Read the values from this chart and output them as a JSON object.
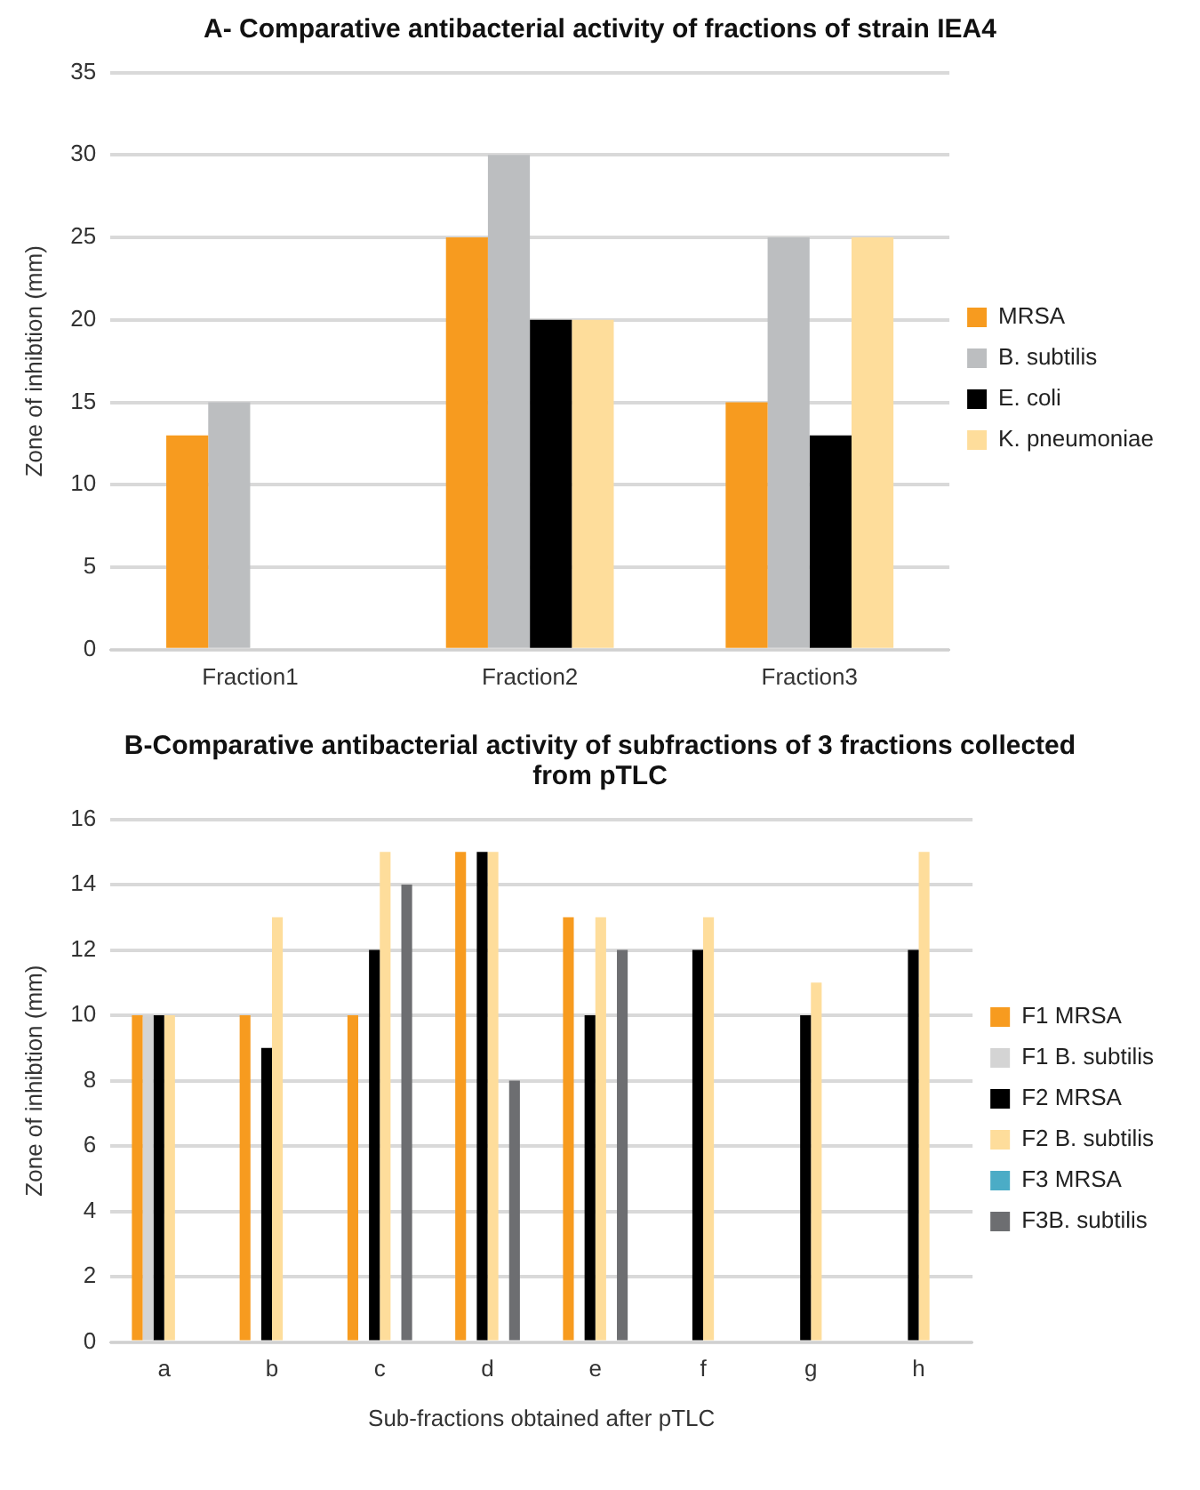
{
  "chart_data": [
    {
      "type": "bar",
      "title": "A- Comparative antibacterial activity of fractions of strain IEA4",
      "ylabel": "Zone of inhibtion (mm)",
      "categories": [
        "Fraction1",
        "Fraction2",
        "Fraction3"
      ],
      "series": [
        {
          "name": "MRSA",
          "color": "#f79b1f",
          "values": [
            13,
            25,
            15
          ]
        },
        {
          "name": "B. subtilis",
          "color": "#bcbec0",
          "values": [
            15,
            30,
            25
          ]
        },
        {
          "name": "E. coli",
          "color": "#000000",
          "values": [
            0,
            20,
            13
          ]
        },
        {
          "name": "K. pneumoniae",
          "color": "#fedd9b",
          "values": [
            0,
            20,
            25
          ]
        }
      ],
      "ylim": [
        0,
        35
      ],
      "yticks": [
        0,
        5,
        10,
        15,
        20,
        25,
        30,
        35
      ],
      "grid": "y",
      "legend": "right"
    },
    {
      "type": "bar",
      "title": "B-Comparative antibacterial activity of subfractions of 3 fractions collected from pTLC",
      "xlabel": "Sub-fractions obtained after pTLC",
      "ylabel": "Zone of inhibtion (mm)",
      "categories": [
        "a",
        "b",
        "c",
        "d",
        "e",
        "f",
        "g",
        "h"
      ],
      "series": [
        {
          "name": "F1 MRSA",
          "color": "#f79b1f",
          "values": [
            10,
            10,
            10,
            15,
            13,
            0,
            0,
            0
          ]
        },
        {
          "name": "F1 B. subtilis",
          "color": "#d4d4d4",
          "values": [
            10,
            0,
            0,
            0,
            0,
            0,
            0,
            0
          ]
        },
        {
          "name": "F2 MRSA",
          "color": "#000000",
          "values": [
            10,
            9,
            12,
            15,
            10,
            12,
            10,
            12
          ]
        },
        {
          "name": "F2 B. subtilis",
          "color": "#fedd9b",
          "values": [
            10,
            13,
            15,
            15,
            13,
            13,
            11,
            15
          ]
        },
        {
          "name": "F3 MRSA",
          "color": "#4bacc6",
          "values": [
            0,
            0,
            0,
            0,
            0,
            0,
            0,
            0
          ]
        },
        {
          "name": "F3B. subtilis",
          "color": "#6d6e71",
          "values": [
            0,
            0,
            14,
            8,
            12,
            0,
            0,
            0
          ]
        }
      ],
      "ylim": [
        0,
        16
      ],
      "yticks": [
        0,
        2,
        4,
        6,
        8,
        10,
        12,
        14,
        16
      ],
      "grid": "y",
      "legend": "right"
    }
  ]
}
